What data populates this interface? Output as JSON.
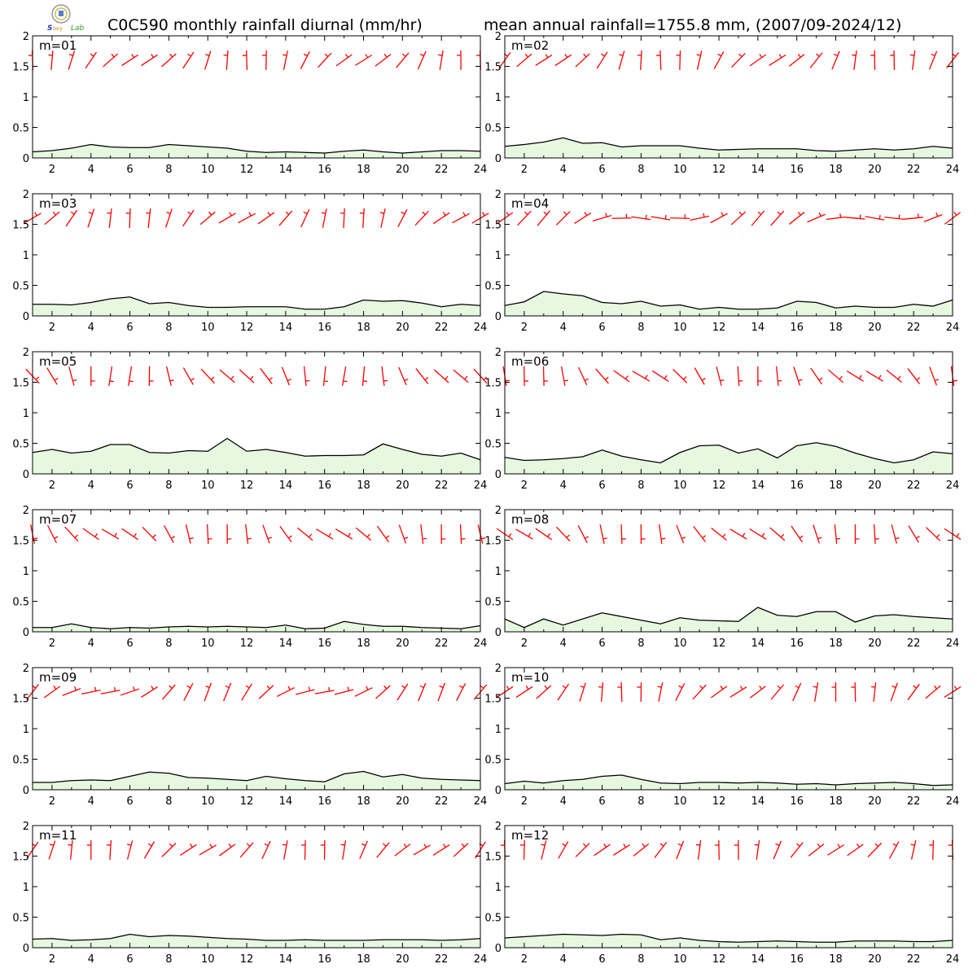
{
  "header": {
    "title_left": "C0C590 monthly rainfall diurnal (mm/hr)",
    "title_right": "mean annual rainfall=1755.8 mm, (2007/09-2024/12)"
  },
  "colors": {
    "wind": "#ff0000",
    "fill": "#e6f9e0",
    "line": "#000000"
  },
  "chart_data": {
    "type": "area",
    "x": [
      1,
      2,
      3,
      4,
      5,
      6,
      7,
      8,
      9,
      10,
      11,
      12,
      13,
      14,
      15,
      16,
      17,
      18,
      19,
      20,
      21,
      22,
      23,
      24
    ],
    "xlim": [
      1,
      24
    ],
    "ylim": [
      0,
      2
    ],
    "xticks": [
      "2",
      "4",
      "6",
      "8",
      "10",
      "12",
      "14",
      "16",
      "18",
      "20",
      "22",
      "24"
    ],
    "yticks": [
      "0",
      "0.5",
      "1",
      "1.5",
      "2"
    ],
    "panels": [
      {
        "label": "m=01",
        "values": [
          0.1,
          0.12,
          0.16,
          0.22,
          0.18,
          0.17,
          0.17,
          0.22,
          0.2,
          0.18,
          0.16,
          0.11,
          0.09,
          0.1,
          0.09,
          0.08,
          0.11,
          0.13,
          0.1,
          0.08,
          0.1,
          0.12,
          0.12,
          0.11
        ]
      },
      {
        "label": "m=02",
        "values": [
          0.19,
          0.22,
          0.26,
          0.33,
          0.24,
          0.25,
          0.18,
          0.2,
          0.2,
          0.2,
          0.16,
          0.13,
          0.14,
          0.15,
          0.15,
          0.15,
          0.12,
          0.11,
          0.13,
          0.15,
          0.13,
          0.15,
          0.19,
          0.16
        ]
      },
      {
        "label": "m=03",
        "values": [
          0.19,
          0.19,
          0.18,
          0.22,
          0.28,
          0.31,
          0.2,
          0.22,
          0.17,
          0.14,
          0.14,
          0.15,
          0.15,
          0.15,
          0.11,
          0.11,
          0.15,
          0.26,
          0.24,
          0.25,
          0.21,
          0.15,
          0.19,
          0.17
        ]
      },
      {
        "label": "m=04",
        "values": [
          0.17,
          0.23,
          0.4,
          0.36,
          0.33,
          0.22,
          0.2,
          0.24,
          0.16,
          0.18,
          0.11,
          0.14,
          0.11,
          0.11,
          0.13,
          0.24,
          0.22,
          0.13,
          0.16,
          0.14,
          0.14,
          0.19,
          0.16,
          0.26
        ]
      },
      {
        "label": "m=05",
        "values": [
          0.35,
          0.4,
          0.34,
          0.37,
          0.48,
          0.48,
          0.35,
          0.34,
          0.38,
          0.37,
          0.58,
          0.37,
          0.4,
          0.35,
          0.29,
          0.3,
          0.3,
          0.31,
          0.49,
          0.4,
          0.32,
          0.29,
          0.34,
          0.23
        ]
      },
      {
        "label": "m=06",
        "values": [
          0.27,
          0.22,
          0.23,
          0.25,
          0.28,
          0.39,
          0.29,
          0.23,
          0.18,
          0.35,
          0.46,
          0.47,
          0.34,
          0.41,
          0.26,
          0.46,
          0.51,
          0.45,
          0.34,
          0.25,
          0.18,
          0.23,
          0.36,
          0.33
        ]
      },
      {
        "label": "m=07",
        "values": [
          0.07,
          0.07,
          0.13,
          0.07,
          0.05,
          0.07,
          0.06,
          0.08,
          0.09,
          0.08,
          0.09,
          0.08,
          0.07,
          0.11,
          0.05,
          0.06,
          0.17,
          0.12,
          0.09,
          0.09,
          0.07,
          0.06,
          0.05,
          0.1
        ]
      },
      {
        "label": "m=08",
        "values": [
          0.21,
          0.07,
          0.21,
          0.11,
          0.21,
          0.31,
          0.25,
          0.19,
          0.13,
          0.23,
          0.19,
          0.18,
          0.17,
          0.4,
          0.27,
          0.25,
          0.33,
          0.33,
          0.16,
          0.26,
          0.28,
          0.25,
          0.23,
          0.21
        ]
      },
      {
        "label": "m=09",
        "values": [
          0.12,
          0.12,
          0.15,
          0.16,
          0.15,
          0.22,
          0.29,
          0.27,
          0.2,
          0.19,
          0.17,
          0.15,
          0.22,
          0.18,
          0.15,
          0.13,
          0.26,
          0.3,
          0.21,
          0.25,
          0.19,
          0.17,
          0.16,
          0.15
        ]
      },
      {
        "label": "m=10",
        "values": [
          0.1,
          0.14,
          0.11,
          0.15,
          0.17,
          0.22,
          0.24,
          0.17,
          0.11,
          0.1,
          0.12,
          0.12,
          0.11,
          0.12,
          0.11,
          0.09,
          0.1,
          0.08,
          0.1,
          0.11,
          0.12,
          0.1,
          0.07,
          0.08
        ]
      },
      {
        "label": "m=11",
        "values": [
          0.14,
          0.15,
          0.12,
          0.13,
          0.15,
          0.22,
          0.18,
          0.2,
          0.19,
          0.17,
          0.15,
          0.14,
          0.12,
          0.12,
          0.13,
          0.12,
          0.12,
          0.12,
          0.13,
          0.13,
          0.13,
          0.12,
          0.13,
          0.15
        ]
      },
      {
        "label": "m=12",
        "values": [
          0.16,
          0.18,
          0.2,
          0.22,
          0.21,
          0.2,
          0.22,
          0.21,
          0.13,
          0.16,
          0.12,
          0.1,
          0.09,
          0.1,
          0.11,
          0.1,
          0.09,
          0.09,
          0.11,
          0.11,
          0.11,
          0.1,
          0.1,
          0.12
        ]
      }
    ]
  }
}
